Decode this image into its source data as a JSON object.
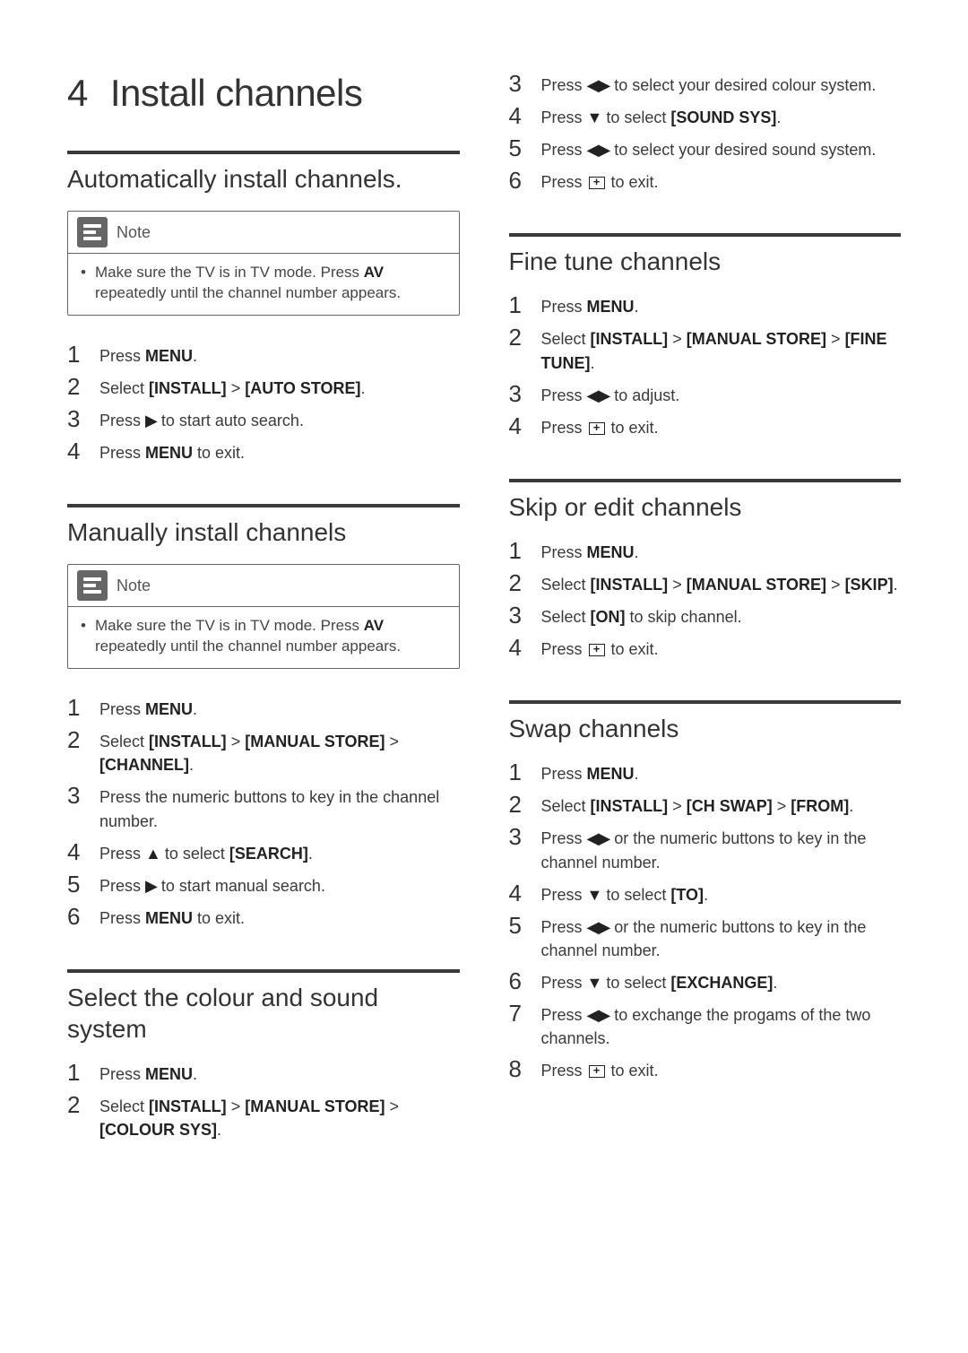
{
  "chapter": {
    "number": "4",
    "title": "Install channels"
  },
  "note_label": "Note",
  "note_text": "Make sure the TV is in TV mode. Press <b>AV</b> repeatedly until the channel number appears.",
  "glyphs": {
    "left_right": "◀▶",
    "right": "▶",
    "down": "▼",
    "up": "▲"
  },
  "left_sections": [
    {
      "title": "Automatically install channels.",
      "show_note": true,
      "steps": [
        "Press <b>MENU</b>.",
        "Select <b>[INSTALL]</b> > <b>[AUTO STORE]</b>.",
        "Press <sym>▶</sym> to start auto search.",
        "Press <b>MENU</b> to exit."
      ]
    },
    {
      "title": "Manually install channels",
      "show_note": true,
      "steps": [
        "Press <b>MENU</b>.",
        "Select <b>[INSTALL]</b> > <b>[MANUAL STORE]</b> > <b>[CHANNEL]</b>.",
        "Press the numeric buttons to key in the channel number.",
        "Press <sym>▲</sym> to select <b>[SEARCH]</b>.",
        "Press <sym>▶</sym> to start manual search.",
        "Press <b>MENU</b> to exit."
      ]
    },
    {
      "title": "Select the colour and sound system",
      "show_note": false,
      "steps": [
        "Press <b>MENU</b>.",
        "Select <b>[INSTALL]</b> > <b>[MANUAL STORE]</b> > <b>[COLOUR SYS]</b>."
      ]
    }
  ],
  "right_initial_steps": [
    "Press <sym>◀▶</sym> to select your desired colour system.",
    "Press <sym>▼</sym> to select <b>[SOUND SYS]</b>.",
    "Press <sym>◀▶</sym> to select your desired sound system.",
    "Press <exit></exit> to exit."
  ],
  "right_initial_start": 3,
  "right_sections": [
    {
      "title": "Fine tune channels",
      "steps": [
        "Press <b>MENU</b>.",
        "Select <b>[INSTALL]</b> > <b>[MANUAL STORE]</b> > <b>[FINE TUNE]</b>.",
        "Press <sym>◀▶</sym> to adjust.",
        "Press <exit></exit> to exit."
      ]
    },
    {
      "title": "Skip or edit channels",
      "steps": [
        "Press <b>MENU</b>.",
        "Select <b>[INSTALL]</b> > <b>[MANUAL STORE]</b> > <b>[SKIP]</b>.",
        "Select <b>[ON]</b> to skip channel.",
        "Press <exit></exit> to exit."
      ]
    },
    {
      "title": "Swap channels",
      "steps": [
        "Press <b>MENU</b>.",
        "Select <b>[INSTALL]</b> > <b>[CH SWAP]</b> > <b>[FROM]</b>.",
        "Press <sym>◀▶</sym> or the numeric buttons to key in the channel number.",
        "Press <sym>▼</sym> to select <b>[TO]</b>.",
        "Press <sym>◀▶</sym> or the numeric buttons to key in the channel number.",
        "Press <sym>▼</sym> to select <b>[EXCHANGE]</b>.",
        "Press <sym>◀▶</sym> to exchange the progams of the two channels.",
        "Press <exit></exit> to exit."
      ]
    }
  ],
  "colors": {
    "text": "#3a3a3a",
    "rule": "#3a3a3a",
    "note_border": "#666666",
    "note_icon_bg": "#666666",
    "background": "#ffffff"
  }
}
